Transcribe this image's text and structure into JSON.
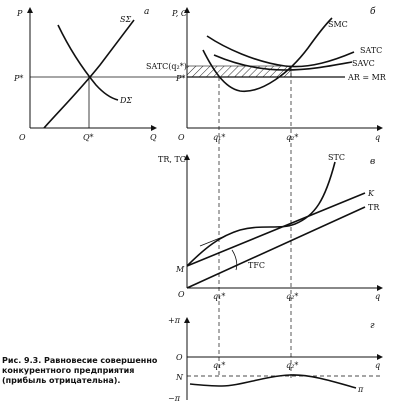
{
  "panel_a": {
    "letter": "а",
    "y_axis": "P",
    "x_axis": "Q",
    "origin": "O",
    "p_star": "P*",
    "q_star": "Q*",
    "supply": "SΣ",
    "demand": "DΣ"
  },
  "panel_b": {
    "letter": "б",
    "y_axis": "P, C",
    "x_axis": "q",
    "origin": "O",
    "satc_label": "SATC(q₂*)",
    "p_star": "P*",
    "smc": "SMC",
    "satc": "SATC",
    "savc": "SAVC",
    "ar_mr": "AR = MR",
    "q1": "q₁*",
    "q2": "q₂*"
  },
  "panel_v": {
    "letter": "в",
    "y_axis": "TR, TC",
    "x_axis": "q",
    "origin": "O",
    "m": "M",
    "stc": "STC",
    "k": "K",
    "tr": "TR",
    "tfc": "TFC",
    "q1": "q₁*",
    "q2": "q₂*"
  },
  "panel_g": {
    "letter": "г",
    "plus_pi": "+π",
    "minus_pi": "−π",
    "origin": "O",
    "n": "N",
    "x_axis": "q",
    "q1": "q₁*",
    "q2": "q₂*",
    "pi": "π"
  },
  "caption": "Рис. 9.3. Равновесие совершенно конкурентного предприятия (прибыль отрицательна)."
}
